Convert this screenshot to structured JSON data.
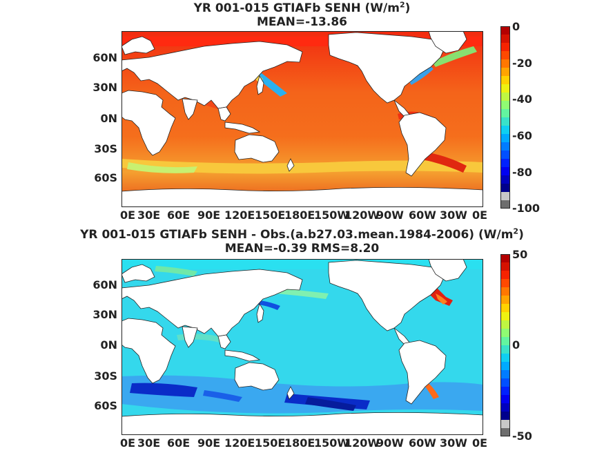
{
  "panels": [
    {
      "title": "YR 001-015 GTIAFb  SENH (W/m",
      "title_sup": "2",
      "title_close": ")",
      "subtitle": "MEAN=-13.86",
      "colorbar": {
        "ticks": [
          "0",
          "-20",
          "-40",
          "-60",
          "-80",
          "-100"
        ],
        "range": [
          -100,
          0
        ]
      }
    },
    {
      "title": "YR 001-015 GTIAFb SENH - Obs.(a.b27.03.mean.1984-2006) (W/m",
      "title_sup": "2",
      "title_close": ")",
      "subtitle": "MEAN=-0.39 RMS=8.20",
      "colorbar": {
        "ticks": [
          "50",
          "0",
          "-50"
        ],
        "range": [
          -50,
          50
        ]
      }
    }
  ],
  "lat_ticks": [
    "60N",
    "30N",
    "0N",
    "30S",
    "60S"
  ],
  "lon_ticks": [
    "0E",
    "30E",
    "60E",
    "90E",
    "120E",
    "150E",
    "180E",
    "150W",
    "120W",
    "90W",
    "60W",
    "30W",
    "0E"
  ],
  "colors": {
    "land": "#ffffff",
    "panel1_ocean": "#f4641a",
    "panel2_ocean": "#34d8ec",
    "colormap": [
      "#7f0000",
      "#ff0000",
      "#ff7f00",
      "#ffff00",
      "#7fff7f",
      "#00ffff",
      "#007fff",
      "#0000ff",
      "#00007f"
    ]
  }
}
